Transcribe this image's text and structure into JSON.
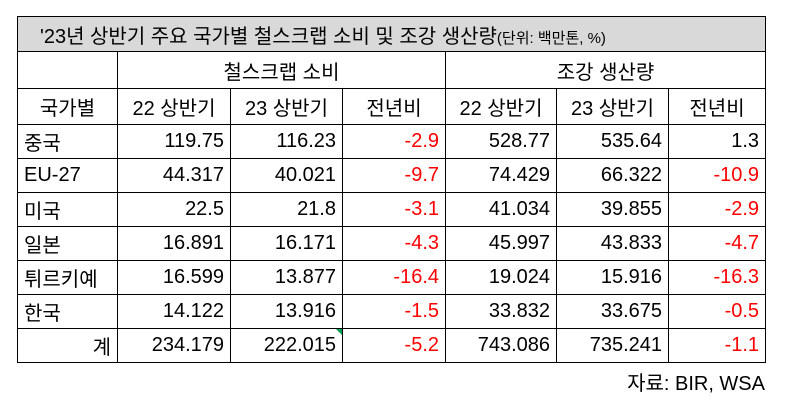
{
  "title": "'23년 상반기 주요 국가별 철스크랩 소비 및 조강 생산량",
  "unit": "(단위: 백만톤, %)",
  "table": {
    "groups": [
      "철스크랩 소비",
      "조강 생산량"
    ],
    "columns": [
      "국가별",
      "22 상반기",
      "23 상반기",
      "전년비",
      "22 상반기",
      "23 상반기",
      "전년비"
    ],
    "rows": [
      [
        "중국",
        "119.75",
        "116.23",
        "-2.9",
        "528.77",
        "535.64",
        "1.3"
      ],
      [
        "EU-27",
        "44.317",
        "40.021",
        "-9.7",
        "74.429",
        "66.322",
        "-10.9"
      ],
      [
        "미국",
        "22.5",
        "21.8",
        "-3.1",
        "41.034",
        "39.855",
        "-2.9"
      ],
      [
        "일본",
        "16.891",
        "16.171",
        "-4.3",
        "45.997",
        "43.833",
        "-4.7"
      ],
      [
        "튀르키예",
        "16.599",
        "13.877",
        "-16.4",
        "19.024",
        "15.916",
        "-16.3"
      ],
      [
        "한국",
        "14.122",
        "13.916",
        "-1.5",
        "33.832",
        "33.675",
        "-0.5"
      ],
      [
        "계",
        "234.179",
        "222.015",
        "-5.2",
        "743.086",
        "735.241",
        "-1.1"
      ]
    ]
  },
  "source": "자료: BIR, WSA"
}
